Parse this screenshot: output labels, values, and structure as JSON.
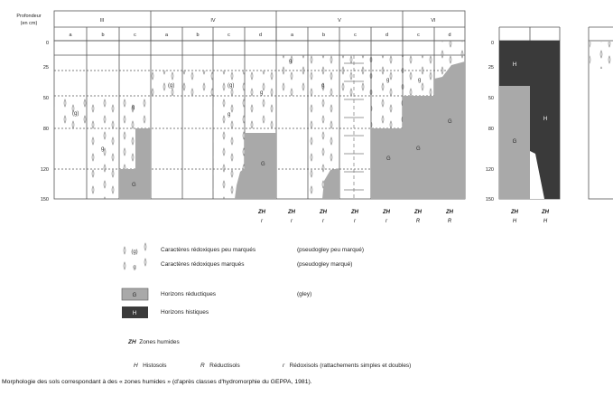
{
  "header": {
    "depth_title_1": "Profondeur",
    "depth_title_2": "(en cm)",
    "classes": [
      "III",
      "IV",
      "V",
      "VI"
    ],
    "sub_letters": [
      "a",
      "b",
      "c",
      "a",
      "b",
      "c",
      "d",
      "a",
      "b",
      "c",
      "d",
      "c",
      "d"
    ],
    "right_letters": [
      "",
      "",
      ""
    ]
  },
  "depth_ticks": [
    "0",
    "25",
    "50",
    "80",
    "120",
    "150"
  ],
  "right_depth_ticks": [
    "0",
    "25",
    "50",
    "80",
    "120",
    "150"
  ],
  "horizon_symbols": {
    "g_faint": "(g)",
    "g": "g",
    "G": "G",
    "H": "H"
  },
  "zh_row": {
    "zh_label": "ZH",
    "cols": [
      {
        "zh": "ZH",
        "sub": "r"
      },
      {
        "zh": "ZH",
        "sub": "r"
      },
      {
        "zh": "ZH",
        "sub": "r"
      },
      {
        "zh": "ZH",
        "sub": "r"
      },
      {
        "zh": "ZH",
        "sub": "r"
      },
      {
        "zh": "ZH",
        "sub": "R"
      },
      {
        "zh": "ZH",
        "sub": "R"
      }
    ],
    "right_cols": [
      {
        "zh": "ZH",
        "sub": "H"
      },
      {
        "zh": "ZH",
        "sub": "H"
      }
    ]
  },
  "legend": {
    "items": [
      {
        "symbol": "(g)",
        "label": "Caractères rédoxiques peu marqués",
        "paren": "(pseudogley peu marqué)"
      },
      {
        "symbol": "g",
        "label": "Caractères rédoxiques marqués",
        "paren": "(pseudogley marqué)"
      },
      {
        "symbol": "G",
        "label": "Horizons réductiques",
        "paren": "(gley)"
      },
      {
        "symbol": "H",
        "label": "Horizons histiques",
        "paren": ""
      }
    ],
    "zh_def": {
      "code": "ZH",
      "label": "Zones humides"
    },
    "abbrevs": [
      {
        "code": "H",
        "label": "Histosols"
      },
      {
        "code": "R",
        "label": "Réductisols"
      },
      {
        "code": "r",
        "label": "Rédoxisols (rattachements simples et doubles)"
      }
    ]
  },
  "caption": "Morphologie des sols correspondant à des « zones humides » (d'après classes d'hydromorphie du GEPPA, 1981).",
  "colors": {
    "grey_fill": "#a9a9a9",
    "dark_fill": "#3a3a3a",
    "grid": "#555555",
    "dash": "#777777"
  }
}
